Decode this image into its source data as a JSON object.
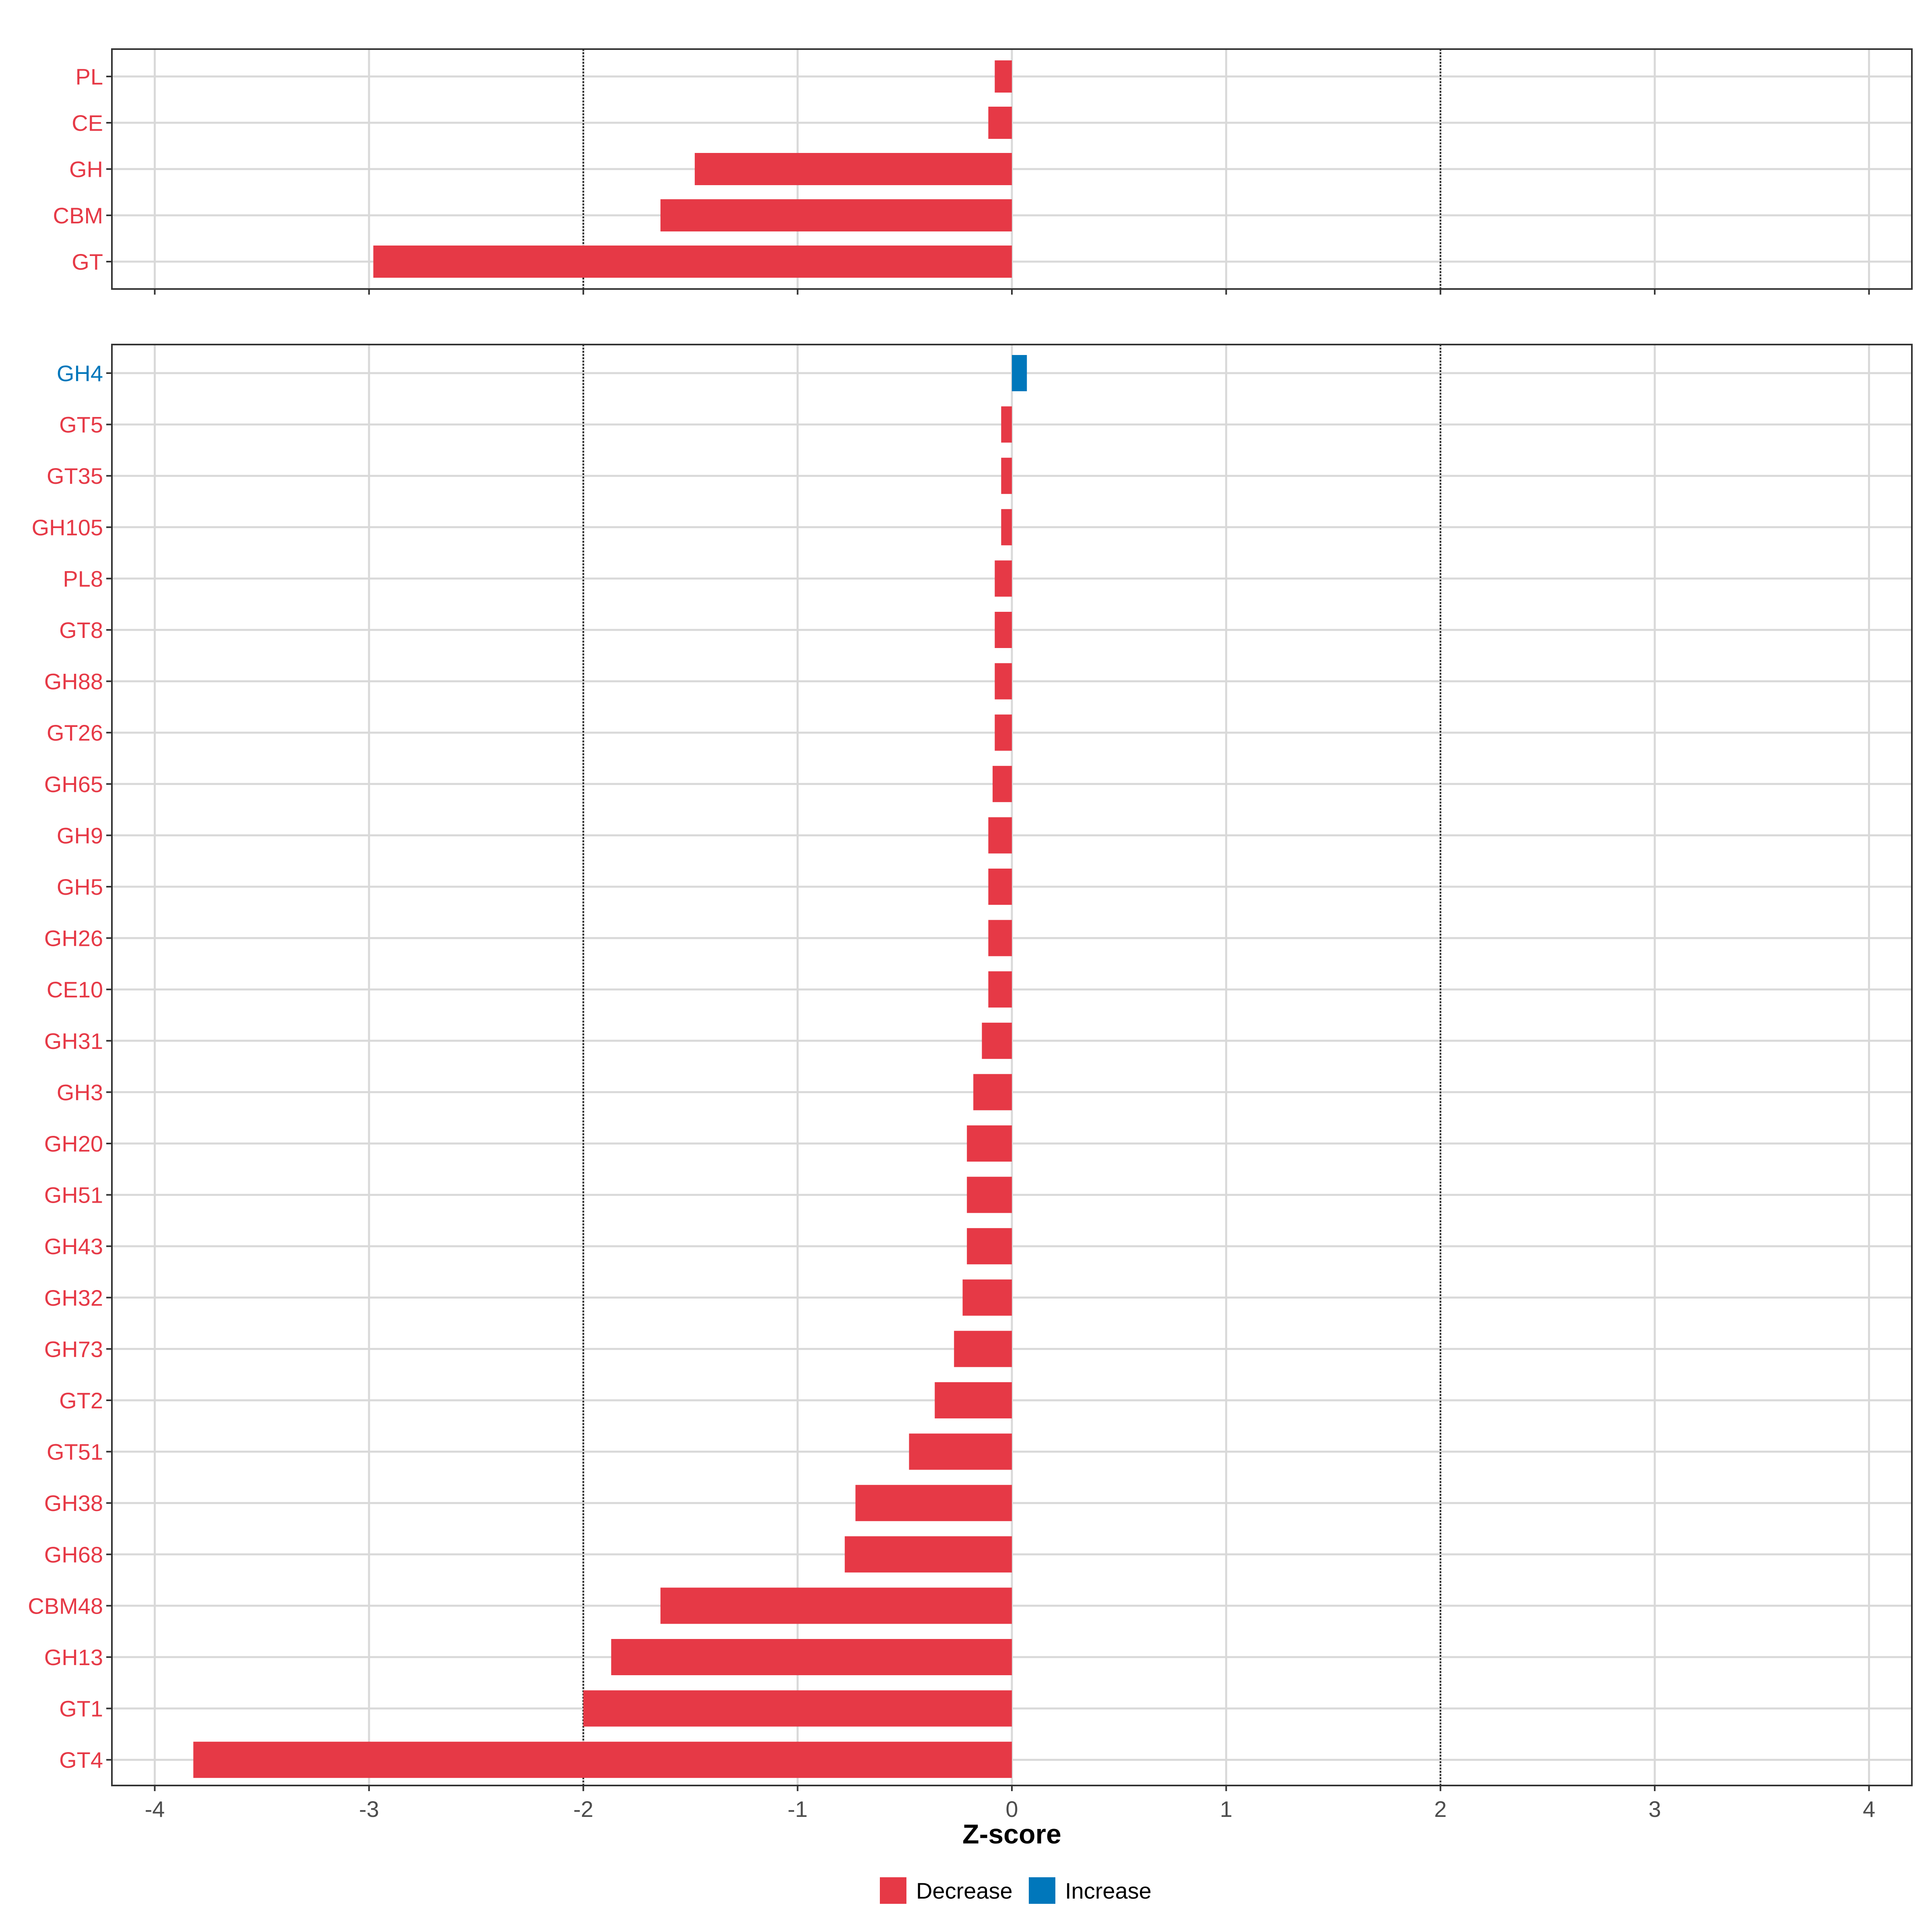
{
  "chart_data": [
    {
      "type": "bar",
      "orientation": "horizontal",
      "panel": "top",
      "categories": [
        "PL",
        "CE",
        "GH",
        "CBM",
        "GT"
      ],
      "values": [
        -0.08,
        -0.11,
        -1.48,
        -1.64,
        -2.98
      ],
      "xlim": [
        -4.2,
        4.2
      ],
      "reference_lines": [
        -2,
        2
      ],
      "grid": true
    },
    {
      "type": "bar",
      "orientation": "horizontal",
      "panel": "bottom",
      "categories": [
        "GH4",
        "GT5",
        "GT35",
        "GH105",
        "PL8",
        "GT8",
        "GH88",
        "GT26",
        "GH65",
        "GH9",
        "GH5",
        "GH26",
        "CE10",
        "GH31",
        "GH3",
        "GH20",
        "GH51",
        "GH43",
        "GH32",
        "GH73",
        "GT2",
        "GT51",
        "GH38",
        "GH68",
        "CBM48",
        "GH13",
        "GT1",
        "GT4"
      ],
      "values": [
        0.07,
        -0.05,
        -0.05,
        -0.05,
        -0.08,
        -0.08,
        -0.08,
        -0.08,
        -0.09,
        -0.11,
        -0.11,
        -0.11,
        -0.11,
        -0.14,
        -0.18,
        -0.21,
        -0.21,
        -0.21,
        -0.23,
        -0.27,
        -0.36,
        -0.48,
        -0.73,
        -0.78,
        -1.64,
        -1.87,
        -2.0,
        -3.82
      ],
      "xlim": [
        -4.2,
        4.2
      ],
      "xticks": [
        "-4",
        "-3",
        "-2",
        "-1",
        "0",
        "1",
        "2",
        "3",
        "4"
      ],
      "xlabel": "Z-score",
      "reference_lines": [
        -2,
        2
      ],
      "grid": true
    }
  ],
  "legend": {
    "placement": "bottom",
    "items": [
      {
        "label": "Decrease",
        "color": "#E63946"
      },
      {
        "label": "Increase",
        "color": "#0077BB"
      }
    ]
  }
}
